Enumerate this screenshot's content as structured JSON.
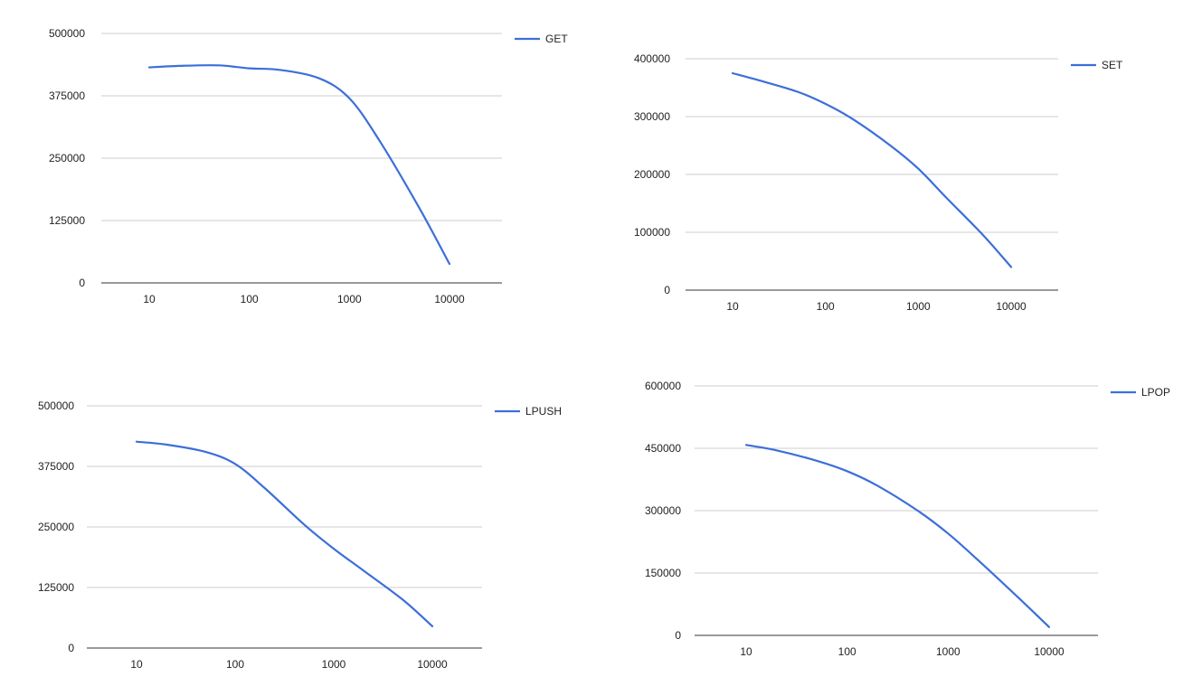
{
  "theme": {
    "series_color": "#3c6fd9",
    "grid_color": "#cccccc",
    "axis_color": "#333333"
  },
  "chart_data": [
    {
      "type": "line",
      "title": "",
      "xlabel": "",
      "ylabel": "",
      "x_scale": "log",
      "x": [
        10,
        20,
        50,
        100,
        200,
        500,
        1000,
        2000,
        5000,
        10000
      ],
      "xticks": [
        "10",
        "100",
        "1000",
        "10000"
      ],
      "xlim": [
        10,
        10000
      ],
      "ylim": [
        0,
        500000
      ],
      "yticks": [
        "0",
        "125000",
        "250000",
        "375000",
        "500000"
      ],
      "grid": true,
      "legend_position": "right",
      "series": [
        {
          "name": "GET",
          "values": [
            432000,
            435000,
            436000,
            430000,
            427000,
            410000,
            370000,
            285000,
            150000,
            38000
          ]
        }
      ]
    },
    {
      "type": "line",
      "title": "",
      "xlabel": "",
      "ylabel": "",
      "x_scale": "log",
      "x": [
        10,
        20,
        50,
        100,
        200,
        500,
        1000,
        2000,
        5000,
        10000
      ],
      "xticks": [
        "10",
        "100",
        "1000",
        "10000"
      ],
      "xlim": [
        10,
        10000
      ],
      "ylim": [
        0,
        400000
      ],
      "yticks": [
        "0",
        "100000",
        "200000",
        "300000",
        "400000"
      ],
      "grid": true,
      "legend_position": "right",
      "series": [
        {
          "name": "SET",
          "values": [
            375000,
            362000,
            343000,
            322000,
            295000,
            250000,
            210000,
            160000,
            95000,
            40000
          ]
        }
      ]
    },
    {
      "type": "line",
      "title": "",
      "xlabel": "",
      "ylabel": "",
      "x_scale": "log",
      "x": [
        10,
        20,
        50,
        100,
        200,
        500,
        1000,
        2000,
        5000,
        10000
      ],
      "xticks": [
        "10",
        "100",
        "1000",
        "10000"
      ],
      "xlim": [
        10,
        10000
      ],
      "ylim": [
        0,
        500000
      ],
      "yticks": [
        "0",
        "125000",
        "250000",
        "375000",
        "500000"
      ],
      "grid": true,
      "legend_position": "right",
      "series": [
        {
          "name": "LPUSH",
          "values": [
            426000,
            420000,
            405000,
            380000,
            330000,
            255000,
            205000,
            160000,
            100000,
            45000
          ]
        }
      ]
    },
    {
      "type": "line",
      "title": "",
      "xlabel": "",
      "ylabel": "",
      "x_scale": "log",
      "x": [
        10,
        20,
        50,
        100,
        200,
        500,
        1000,
        2000,
        5000,
        10000
      ],
      "xticks": [
        "10",
        "100",
        "1000",
        "10000"
      ],
      "xlim": [
        10,
        10000
      ],
      "ylim": [
        0,
        600000
      ],
      "yticks": [
        "0",
        "150000",
        "300000",
        "450000",
        "600000"
      ],
      "grid": true,
      "legend_position": "right",
      "series": [
        {
          "name": "LPOP",
          "values": [
            458000,
            445000,
            420000,
            395000,
            360000,
            300000,
            245000,
            180000,
            90000,
            20000
          ]
        }
      ]
    }
  ]
}
